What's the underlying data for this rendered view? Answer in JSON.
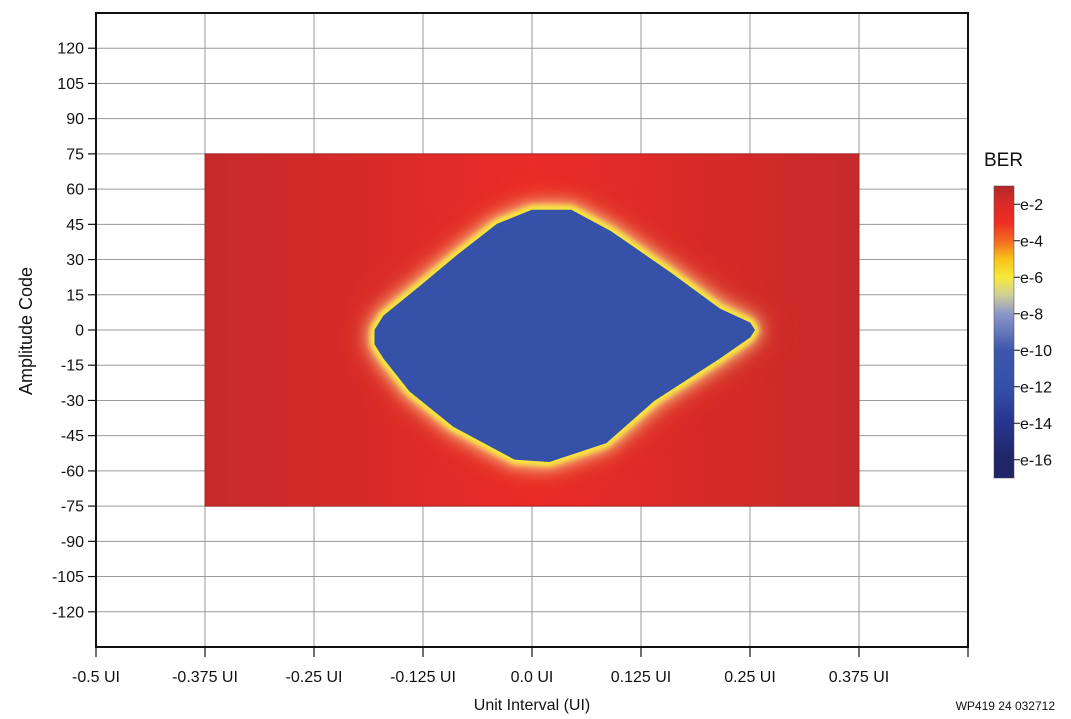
{
  "chart_data": {
    "type": "heatmap",
    "xlabel": "Unit Interval (UI)",
    "ylabel": "Amplitude Code",
    "xlim": [
      -0.5,
      0.5
    ],
    "ylim": [
      -135,
      135
    ],
    "x_ticks": [
      -0.5,
      -0.375,
      -0.25,
      -0.125,
      0.0,
      0.125,
      0.25,
      0.375,
      0.5
    ],
    "x_tick_labels": [
      "-0.5 UI",
      "-0.375 UI",
      "-0.25 UI",
      "-0.125 UI",
      "0.0 UI",
      "0.125 UI",
      "0.25 UI",
      "0.375 UI",
      ""
    ],
    "y_ticks": [
      120,
      105,
      90,
      75,
      60,
      45,
      30,
      15,
      0,
      -15,
      -30,
      -45,
      -60,
      -75,
      -90,
      -105,
      -120
    ],
    "y_tick_labels": [
      "120",
      "105",
      "90",
      "75",
      "60",
      "45",
      "30",
      "15",
      "0",
      "-15",
      "-30",
      "-45",
      "-60",
      "-75",
      "-90",
      "-105",
      "-120"
    ],
    "grid": true,
    "scan_region": {
      "x": [
        -0.375,
        0.375
      ],
      "y": [
        -75,
        75
      ]
    },
    "open_eye": {
      "value_ber_exponent": -12,
      "outer_value_ber_exponent": -2,
      "transition_color_ber_exponent": -6,
      "polygon": [
        [
          0.0,
          51
        ],
        [
          0.045,
          51
        ],
        [
          0.09,
          42
        ],
        [
          0.16,
          24
        ],
        [
          0.215,
          9
        ],
        [
          0.25,
          3
        ],
        [
          0.255,
          0
        ],
        [
          0.25,
          -3
        ],
        [
          0.215,
          -12
        ],
        [
          0.14,
          -30
        ],
        [
          0.085,
          -48
        ],
        [
          0.02,
          -56
        ],
        [
          -0.02,
          -55
        ],
        [
          -0.09,
          -41
        ],
        [
          -0.14,
          -26
        ],
        [
          -0.17,
          -12
        ],
        [
          -0.18,
          -6
        ],
        [
          -0.18,
          0
        ],
        [
          -0.17,
          6
        ],
        [
          -0.13,
          18
        ],
        [
          -0.085,
          32
        ],
        [
          -0.04,
          45
        ]
      ]
    },
    "colorbar": {
      "title": "BER",
      "labels": [
        "e-2",
        "e-4",
        "e-6",
        "e-8",
        "e-10",
        "e-12",
        "e-14",
        "e-16"
      ],
      "exponents": [
        -2,
        -4,
        -6,
        -8,
        -10,
        -12,
        -14,
        -16
      ],
      "range": [
        -1,
        -17
      ],
      "colors": [
        {
          "exp": -1,
          "color": "#b32a2a"
        },
        {
          "exp": -2,
          "color": "#dc2a27"
        },
        {
          "exp": -3,
          "color": "#ee2e24"
        },
        {
          "exp": -4,
          "color": "#f26b21"
        },
        {
          "exp": -5,
          "color": "#f8c11a"
        },
        {
          "exp": -6,
          "color": "#f7ea3a"
        },
        {
          "exp": -7,
          "color": "#cfcf9a"
        },
        {
          "exp": -8,
          "color": "#8c96c8"
        },
        {
          "exp": -10,
          "color": "#3e57ac"
        },
        {
          "exp": -12,
          "color": "#3350a8"
        },
        {
          "exp": -14,
          "color": "#27358d"
        },
        {
          "exp": -16,
          "color": "#1f2566"
        }
      ]
    },
    "colors": {
      "field_edge": "#c62a2a",
      "field_mid": "#ea2b27",
      "halo_orange": "#f5772a",
      "eye_border": "#f7e53a",
      "eye_fill": "#3551a8"
    }
  },
  "figure_id": "WP419_24_032712"
}
